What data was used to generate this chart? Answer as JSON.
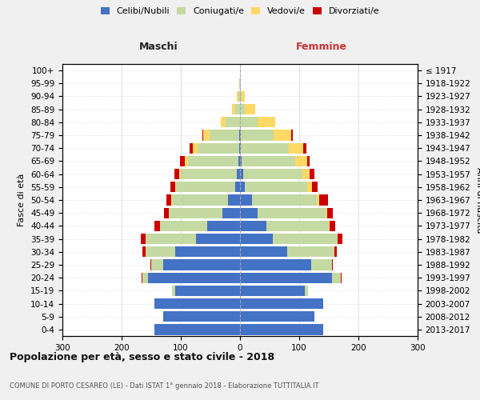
{
  "age_groups": [
    "0-4",
    "5-9",
    "10-14",
    "15-19",
    "20-24",
    "25-29",
    "30-34",
    "35-39",
    "40-44",
    "45-49",
    "50-54",
    "55-59",
    "60-64",
    "65-69",
    "70-74",
    "75-79",
    "80-84",
    "85-89",
    "90-94",
    "95-99",
    "100+"
  ],
  "birth_years": [
    "2013-2017",
    "2008-2012",
    "2003-2007",
    "1998-2002",
    "1993-1997",
    "1988-1992",
    "1983-1987",
    "1978-1982",
    "1973-1977",
    "1968-1972",
    "1963-1967",
    "1958-1962",
    "1953-1957",
    "1948-1952",
    "1943-1947",
    "1938-1942",
    "1933-1937",
    "1928-1932",
    "1923-1927",
    "1918-1922",
    "≤ 1917"
  ],
  "males": {
    "celibi": [
      145,
      130,
      145,
      110,
      155,
      130,
      110,
      75,
      55,
      30,
      20,
      8,
      5,
      3,
      2,
      2,
      0,
      0,
      0,
      0,
      0
    ],
    "coniugati": [
      0,
      0,
      0,
      5,
      10,
      20,
      50,
      85,
      80,
      90,
      95,
      100,
      95,
      85,
      70,
      50,
      25,
      8,
      3,
      1,
      0
    ],
    "vedovi": [
      0,
      0,
      0,
      0,
      0,
      0,
      0,
      0,
      0,
      0,
      1,
      2,
      3,
      5,
      8,
      10,
      8,
      5,
      2,
      0,
      0
    ],
    "divorziati": [
      0,
      0,
      0,
      0,
      1,
      2,
      5,
      8,
      10,
      8,
      8,
      8,
      8,
      8,
      5,
      2,
      0,
      0,
      0,
      0,
      0
    ]
  },
  "females": {
    "nubili": [
      140,
      125,
      140,
      110,
      155,
      120,
      80,
      55,
      45,
      30,
      20,
      8,
      5,
      3,
      2,
      2,
      0,
      0,
      0,
      0,
      0
    ],
    "coniugate": [
      0,
      0,
      0,
      5,
      15,
      35,
      80,
      110,
      105,
      115,
      110,
      105,
      100,
      90,
      80,
      55,
      30,
      8,
      3,
      1,
      0
    ],
    "vedove": [
      0,
      0,
      0,
      0,
      0,
      0,
      0,
      0,
      1,
      2,
      4,
      8,
      12,
      20,
      25,
      30,
      30,
      18,
      5,
      1,
      0
    ],
    "divorziate": [
      0,
      0,
      0,
      0,
      1,
      2,
      3,
      8,
      10,
      10,
      15,
      10,
      8,
      5,
      5,
      2,
      0,
      0,
      0,
      0,
      0
    ]
  },
  "colors": {
    "celibi": "#4472c4",
    "coniugati": "#c5d9a3",
    "vedovi": "#ffd966",
    "divorziati": "#cc0000"
  },
  "xlim": 300,
  "title": "Popolazione per età, sesso e stato civile - 2018",
  "subtitle": "COMUNE DI PORTO CESAREO (LE) - Dati ISTAT 1° gennaio 2018 - Elaborazione TUTTITALIA.IT",
  "header_left": "Maschi",
  "header_right": "Femmine",
  "ylabel_left": "Fasce di età",
  "ylabel_right": "Anni di nascita",
  "bg_color": "#f0f0f0",
  "plot_bg_color": "#ffffff",
  "legend_labels": [
    "Celibi/Nubili",
    "Coniugati/e",
    "Vedovi/e",
    "Divorziati/e"
  ],
  "grid_color": "#cccccc"
}
